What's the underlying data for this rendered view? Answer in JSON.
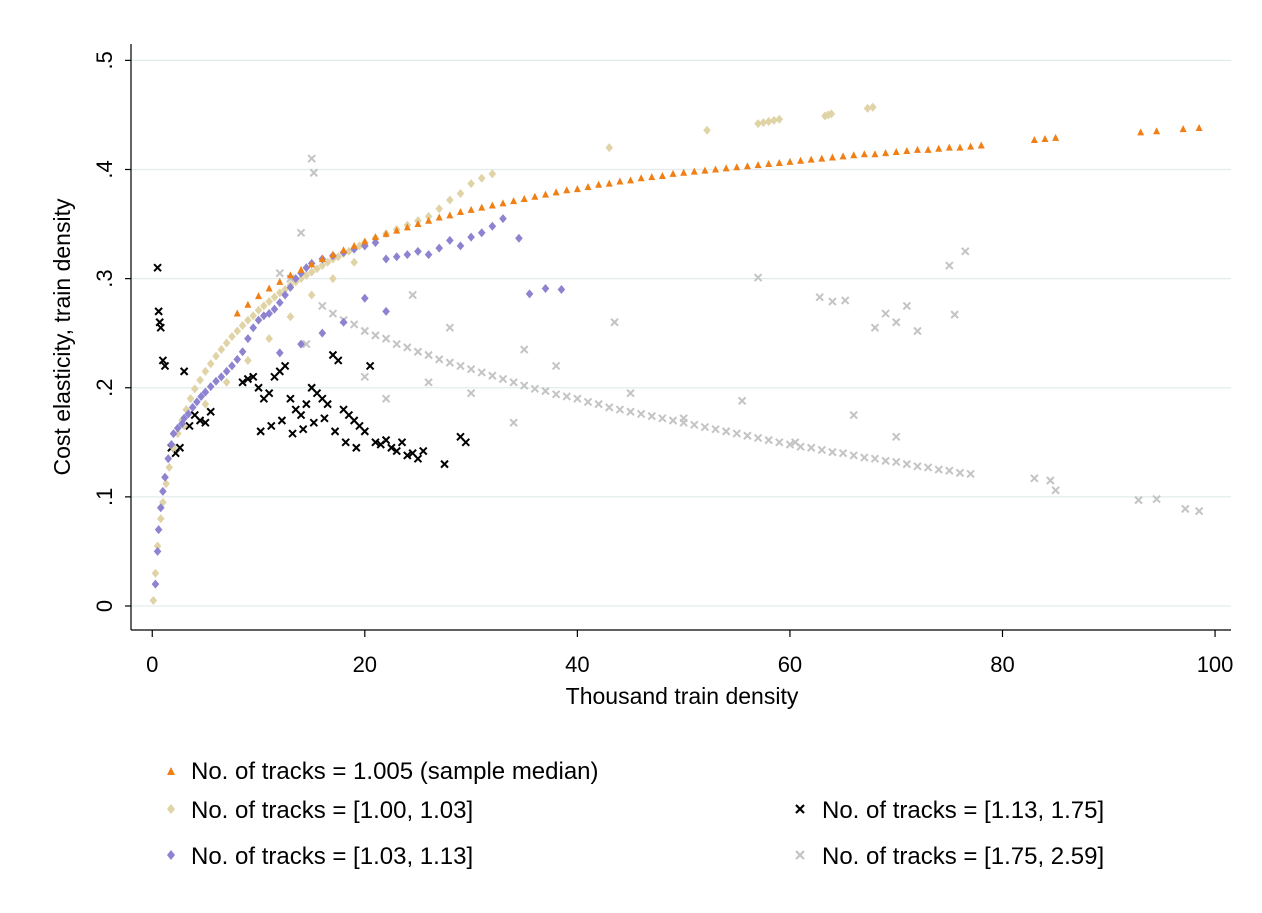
{
  "chart_data": {
    "type": "scatter",
    "xlabel": "Thousand train density",
    "ylabel": "Cost elasticity, train density",
    "xlim": [
      -2,
      101.5
    ],
    "ylim": [
      -0.022,
      0.515
    ],
    "x_ticks": [
      0,
      20,
      40,
      60,
      80,
      100
    ],
    "x_tick_labels": [
      "0",
      "20",
      "40",
      "60",
      "80",
      "100"
    ],
    "y_ticks": [
      0,
      0.1,
      0.2,
      0.3,
      0.4,
      0.5
    ],
    "y_tick_labels": [
      "0",
      ".1",
      ".2",
      ".3",
      ".4",
      ".5"
    ],
    "grid": true,
    "legend_position": "bottom",
    "series": [
      {
        "name": "No. of tracks = 1.005 (sample median)",
        "color": "#f07f16",
        "marker": "triangle",
        "x": [
          8,
          9,
          10,
          11,
          12,
          13,
          14,
          15,
          16,
          17,
          18,
          19,
          20,
          21,
          22,
          23,
          24,
          25,
          26,
          27,
          28,
          29,
          30,
          31,
          32,
          33,
          34,
          35,
          36,
          37,
          38,
          39,
          40,
          41,
          42,
          43,
          44,
          45,
          46,
          47,
          48,
          49,
          50,
          51,
          52,
          53,
          54,
          55,
          56,
          57,
          58,
          59,
          60,
          61,
          62,
          63,
          64,
          65,
          66,
          67,
          68,
          69,
          70,
          71,
          72,
          73,
          74,
          75,
          76,
          77,
          78,
          83,
          84,
          85,
          93,
          94.5,
          97,
          98.5
        ],
        "y": [
          0.268,
          0.276,
          0.284,
          0.291,
          0.297,
          0.303,
          0.308,
          0.313,
          0.318,
          0.322,
          0.326,
          0.33,
          0.334,
          0.338,
          0.341,
          0.344,
          0.347,
          0.35,
          0.353,
          0.356,
          0.358,
          0.361,
          0.363,
          0.365,
          0.367,
          0.369,
          0.371,
          0.373,
          0.375,
          0.377,
          0.379,
          0.381,
          0.382,
          0.384,
          0.386,
          0.387,
          0.389,
          0.39,
          0.392,
          0.393,
          0.394,
          0.396,
          0.397,
          0.398,
          0.399,
          0.4,
          0.401,
          0.402,
          0.403,
          0.404,
          0.405,
          0.406,
          0.407,
          0.408,
          0.409,
          0.41,
          0.411,
          0.412,
          0.413,
          0.414,
          0.414,
          0.415,
          0.416,
          0.417,
          0.418,
          0.418,
          0.419,
          0.42,
          0.42,
          0.421,
          0.422,
          0.427,
          0.428,
          0.429,
          0.434,
          0.435,
          0.437,
          0.438
        ]
      },
      {
        "name": "No. of tracks = [1.00, 1.03]",
        "color": "#e0d3a6",
        "marker": "diamond",
        "x": [
          0.1,
          0.3,
          0.5,
          0.8,
          1.0,
          1.3,
          1.6,
          2.0,
          2.4,
          2.8,
          3.2,
          3.6,
          4.0,
          4.5,
          5.0,
          5.5,
          6.0,
          6.5,
          7.0,
          7.5,
          8.0,
          8.5,
          9.0,
          9.5,
          10.0,
          10.5,
          11.0,
          11.5,
          12.0,
          12.5,
          13.0,
          13.5,
          14.0,
          14.5,
          15.0,
          15.5,
          16.0,
          16.5,
          17.0,
          17.5,
          18.0,
          18.5,
          19.0,
          19.5,
          20.0,
          21.0,
          22.0,
          23.0,
          24.0,
          25.0,
          26.0,
          27.0,
          28.0,
          29.0,
          30.0,
          31.0,
          32.0,
          43.0,
          52.2,
          57.0,
          57.5,
          58.0,
          58.5,
          59.0,
          63.3,
          63.6,
          63.9,
          67.3,
          67.8,
          3.0,
          5.0,
          7.0,
          9.0,
          11.0,
          13.0,
          15.0,
          17.0,
          19.0
        ],
        "y": [
          0.005,
          0.03,
          0.055,
          0.08,
          0.095,
          0.112,
          0.127,
          0.145,
          0.158,
          0.17,
          0.18,
          0.19,
          0.199,
          0.207,
          0.215,
          0.222,
          0.229,
          0.235,
          0.241,
          0.247,
          0.252,
          0.257,
          0.262,
          0.266,
          0.271,
          0.275,
          0.279,
          0.283,
          0.287,
          0.29,
          0.294,
          0.297,
          0.3,
          0.303,
          0.306,
          0.309,
          0.312,
          0.315,
          0.318,
          0.32,
          0.323,
          0.325,
          0.328,
          0.33,
          0.333,
          0.337,
          0.341,
          0.345,
          0.349,
          0.353,
          0.357,
          0.364,
          0.372,
          0.378,
          0.387,
          0.392,
          0.396,
          0.42,
          0.436,
          0.442,
          0.443,
          0.444,
          0.445,
          0.446,
          0.449,
          0.45,
          0.451,
          0.456,
          0.457,
          0.165,
          0.185,
          0.205,
          0.225,
          0.245,
          0.265,
          0.285,
          0.3,
          0.315
        ]
      },
      {
        "name": "No. of tracks = [1.03, 1.13]",
        "color": "#8d83d0",
        "marker": "diamond",
        "x": [
          0.3,
          0.5,
          0.6,
          0.8,
          1.0,
          1.2,
          1.5,
          1.8,
          2.0,
          2.4,
          2.8,
          3.0,
          3.4,
          3.8,
          4.2,
          4.6,
          5.0,
          5.5,
          6.0,
          6.5,
          7.0,
          7.5,
          8.0,
          8.5,
          9.0,
          9.5,
          10.0,
          10.5,
          11.0,
          11.5,
          12.0,
          12.5,
          13.0,
          13.5,
          14.0,
          14.5,
          15.0,
          16.0,
          17.0,
          18.0,
          19.0,
          20.0,
          21.0,
          22.0,
          23.0,
          24.0,
          25.0,
          26.0,
          27.0,
          28.0,
          29.0,
          30.0,
          31.0,
          32.0,
          33.0,
          34.5,
          35.5,
          37.0,
          38.5,
          12.0,
          14.0,
          16.0,
          18.0,
          20.0,
          22.0
        ],
        "y": [
          0.02,
          0.05,
          0.07,
          0.09,
          0.105,
          0.118,
          0.135,
          0.148,
          0.158,
          0.163,
          0.167,
          0.172,
          0.176,
          0.182,
          0.187,
          0.192,
          0.196,
          0.201,
          0.206,
          0.21,
          0.215,
          0.22,
          0.226,
          0.233,
          0.245,
          0.255,
          0.262,
          0.266,
          0.268,
          0.272,
          0.278,
          0.285,
          0.292,
          0.3,
          0.305,
          0.31,
          0.314,
          0.318,
          0.321,
          0.324,
          0.327,
          0.33,
          0.333,
          0.318,
          0.32,
          0.322,
          0.325,
          0.322,
          0.328,
          0.335,
          0.33,
          0.338,
          0.342,
          0.348,
          0.355,
          0.337,
          0.286,
          0.291,
          0.29,
          0.232,
          0.24,
          0.25,
          0.26,
          0.282,
          0.27
        ]
      },
      {
        "name": "No. of tracks = [1.13, 1.75]",
        "color": "#000000",
        "marker": "x",
        "x": [
          0.5,
          0.6,
          0.7,
          0.8,
          1.0,
          1.2,
          1.8,
          2.2,
          2.6,
          3.0,
          3.5,
          4.0,
          4.5,
          5.0,
          5.5,
          8.5,
          9.0,
          9.5,
          10.0,
          10.5,
          11.0,
          11.5,
          12.0,
          12.5,
          13.0,
          13.5,
          14.0,
          14.5,
          15.0,
          15.5,
          16.0,
          16.5,
          17.0,
          17.5,
          18.0,
          18.5,
          19.0,
          19.5,
          20.0,
          20.5,
          21.0,
          21.5,
          22.0,
          22.5,
          23.0,
          23.5,
          24.0,
          24.5,
          25.0,
          25.5,
          27.5,
          29.0,
          29.5,
          10.2,
          11.2,
          12.2,
          13.2,
          14.2,
          15.2,
          16.2,
          17.2,
          18.2,
          19.2
        ],
        "y": [
          0.31,
          0.27,
          0.26,
          0.255,
          0.225,
          0.22,
          0.145,
          0.14,
          0.145,
          0.215,
          0.165,
          0.175,
          0.17,
          0.168,
          0.178,
          0.205,
          0.208,
          0.21,
          0.2,
          0.19,
          0.195,
          0.21,
          0.215,
          0.22,
          0.19,
          0.18,
          0.175,
          0.185,
          0.2,
          0.195,
          0.19,
          0.185,
          0.23,
          0.225,
          0.18,
          0.175,
          0.17,
          0.165,
          0.16,
          0.22,
          0.15,
          0.148,
          0.152,
          0.145,
          0.142,
          0.15,
          0.138,
          0.14,
          0.135,
          0.142,
          0.13,
          0.155,
          0.15,
          0.16,
          0.165,
          0.17,
          0.158,
          0.162,
          0.168,
          0.172,
          0.16,
          0.15,
          0.145
        ]
      },
      {
        "name": "No. of tracks = [1.75, 2.59]",
        "color": "#c4c4c4",
        "marker": "x",
        "x": [
          12.0,
          13.0,
          14.0,
          15.0,
          15.2,
          16.0,
          17.0,
          18.0,
          19.0,
          20.0,
          21.0,
          22.0,
          23.0,
          24.0,
          25.0,
          26.0,
          27.0,
          28.0,
          29.0,
          30.0,
          31.0,
          32.0,
          33.0,
          34.0,
          35.0,
          36.0,
          37.0,
          38.0,
          39.0,
          40.0,
          41.0,
          42.0,
          43.0,
          44.0,
          45.0,
          46.0,
          47.0,
          48.0,
          49.0,
          50.0,
          51.0,
          52.0,
          53.0,
          54.0,
          55.0,
          56.0,
          57.0,
          58.0,
          59.0,
          60.0,
          61.0,
          62.0,
          63.0,
          64.0,
          65.0,
          66.0,
          67.0,
          68.0,
          69.0,
          70.0,
          71.0,
          72.0,
          73.0,
          74.0,
          75.0,
          76.0,
          77.0,
          83.0,
          84.5,
          85.0,
          92.8,
          94.5,
          97.2,
          98.5,
          57.0,
          62.8,
          64.0,
          65.2,
          68.0,
          69.0,
          70.0,
          71.0,
          72.0,
          75.0,
          75.5,
          76.5,
          14.5,
          24.5,
          28.0,
          35.0,
          38.0,
          43.5,
          20.0,
          22.0,
          26.0,
          30.0,
          34.0,
          45.0,
          50.0,
          55.5,
          60.5,
          66.0,
          70.0
        ],
        "y": [
          0.305,
          0.3,
          0.342,
          0.41,
          0.397,
          0.275,
          0.268,
          0.262,
          0.258,
          0.252,
          0.248,
          0.245,
          0.24,
          0.237,
          0.233,
          0.23,
          0.226,
          0.223,
          0.22,
          0.217,
          0.214,
          0.211,
          0.208,
          0.205,
          0.202,
          0.199,
          0.197,
          0.194,
          0.192,
          0.19,
          0.187,
          0.185,
          0.182,
          0.18,
          0.178,
          0.176,
          0.174,
          0.172,
          0.17,
          0.168,
          0.166,
          0.164,
          0.162,
          0.16,
          0.158,
          0.156,
          0.154,
          0.152,
          0.15,
          0.148,
          0.146,
          0.145,
          0.143,
          0.141,
          0.14,
          0.138,
          0.136,
          0.135,
          0.133,
          0.132,
          0.13,
          0.128,
          0.127,
          0.125,
          0.124,
          0.122,
          0.121,
          0.117,
          0.115,
          0.106,
          0.097,
          0.098,
          0.089,
          0.087,
          0.301,
          0.283,
          0.279,
          0.28,
          0.255,
          0.268,
          0.26,
          0.275,
          0.252,
          0.312,
          0.267,
          0.325,
          0.24,
          0.285,
          0.255,
          0.235,
          0.22,
          0.26,
          0.21,
          0.19,
          0.205,
          0.195,
          0.168,
          0.195,
          0.172,
          0.188,
          0.15,
          0.175,
          0.155
        ]
      }
    ]
  }
}
